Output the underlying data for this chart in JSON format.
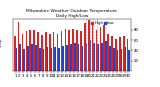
{
  "title": "Milwaukee Weather Outdoor Temperature\nDaily High/Low",
  "title_fontsize": 3.2,
  "highs": [
    68,
    95,
    72,
    78,
    80,
    80,
    75,
    70,
    75,
    72,
    75,
    72,
    78,
    82,
    80,
    82,
    80,
    78,
    92,
    98,
    88,
    80,
    85,
    88,
    72,
    68,
    62,
    65,
    68,
    62
  ],
  "lows": [
    45,
    52,
    42,
    48,
    52,
    50,
    45,
    42,
    46,
    44,
    46,
    44,
    48,
    50,
    52,
    55,
    52,
    48,
    55,
    60,
    55,
    52,
    55,
    58,
    48,
    45,
    40,
    42,
    46,
    40
  ],
  "high_color": "#dd2222",
  "low_color": "#2244cc",
  "background_color": "#ffffff",
  "ylim": [
    0,
    100
  ],
  "yticks": [
    20,
    40,
    60,
    80
  ],
  "tick_fontsize": 2.8,
  "bar_width": 0.42,
  "legend_fontsize": 2.8,
  "dashed_indices": [
    18,
    19,
    20,
    21
  ],
  "xlabel_labels": [
    "1",
    "2",
    "3",
    "4",
    "5",
    "6",
    "7",
    "8",
    "9",
    "10",
    "11",
    "12",
    "13",
    "14",
    "15",
    "16",
    "17",
    "18",
    "19",
    "20",
    "21",
    "22",
    "23",
    "24",
    "25",
    "26",
    "27",
    "28",
    "29",
    "30"
  ]
}
